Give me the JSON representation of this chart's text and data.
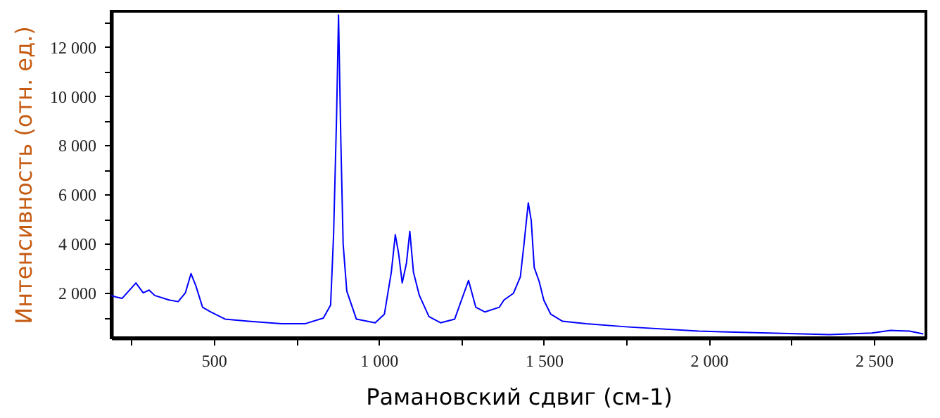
{
  "chart_data": {
    "type": "line",
    "xlabel": "Рамановский сдвиг (см-1)",
    "ylabel": "Интенсивность (отн. ед.)",
    "xlim": [
      189,
      2658
    ],
    "ylim": [
      170,
      13450
    ],
    "xticks": [
      {
        "value": 250,
        "label": null
      },
      {
        "value": 500,
        "label": "500"
      },
      {
        "value": 750,
        "label": null
      },
      {
        "value": 1000,
        "label": "1 000"
      },
      {
        "value": 1250,
        "label": null
      },
      {
        "value": 1500,
        "label": "1 500"
      },
      {
        "value": 1750,
        "label": null
      },
      {
        "value": 2000,
        "label": "2 000"
      },
      {
        "value": 2250,
        "label": null
      },
      {
        "value": 2500,
        "label": "2 500"
      }
    ],
    "yticks": [
      {
        "value": 1000,
        "label": null
      },
      {
        "value": 2000,
        "label": "2 000"
      },
      {
        "value": 3000,
        "label": null
      },
      {
        "value": 4000,
        "label": "4 000"
      },
      {
        "value": 5000,
        "label": null
      },
      {
        "value": 6000,
        "label": "6 000"
      },
      {
        "value": 7000,
        "label": null
      },
      {
        "value": 8000,
        "label": "8 000"
      },
      {
        "value": 9000,
        "label": null
      },
      {
        "value": 10000,
        "label": "10 000"
      },
      {
        "value": 11000,
        "label": null
      },
      {
        "value": 12000,
        "label": "12 000"
      },
      {
        "value": 13000,
        "label": null
      }
    ],
    "x": [
      189,
      203,
      222,
      264,
      286,
      304,
      321,
      364,
      392,
      414,
      431,
      446,
      466,
      491,
      534,
      605,
      705,
      776,
      832,
      854,
      863,
      872,
      878,
      885,
      892,
      903,
      932,
      989,
      1017,
      1038,
      1050,
      1060,
      1071,
      1084,
      1094,
      1105,
      1123,
      1152,
      1187,
      1230,
      1258,
      1272,
      1294,
      1322,
      1365,
      1379,
      1408,
      1429,
      1440,
      1453,
      1462,
      1471,
      1486,
      1500,
      1521,
      1557,
      1628,
      1756,
      1969,
      2182,
      2366,
      2494,
      2551,
      2608,
      2650
    ],
    "series": [
      {
        "color": "#0000ff",
        "values": [
          1890,
          1830,
          1770,
          2400,
          2000,
          2110,
          1890,
          1710,
          1640,
          2000,
          2780,
          2270,
          1410,
          1220,
          930,
          840,
          740,
          740,
          970,
          1500,
          4360,
          9130,
          13300,
          8170,
          3980,
          2070,
          930,
          780,
          1130,
          2840,
          4360,
          3600,
          2400,
          3220,
          4500,
          2840,
          1890,
          1030,
          780,
          930,
          1980,
          2500,
          1410,
          1220,
          1410,
          1700,
          1980,
          2650,
          3980,
          5660,
          4930,
          3030,
          2460,
          1700,
          1130,
          840,
          740,
          610,
          440,
          360,
          300,
          360,
          470,
          440,
          330
        ]
      }
    ]
  }
}
